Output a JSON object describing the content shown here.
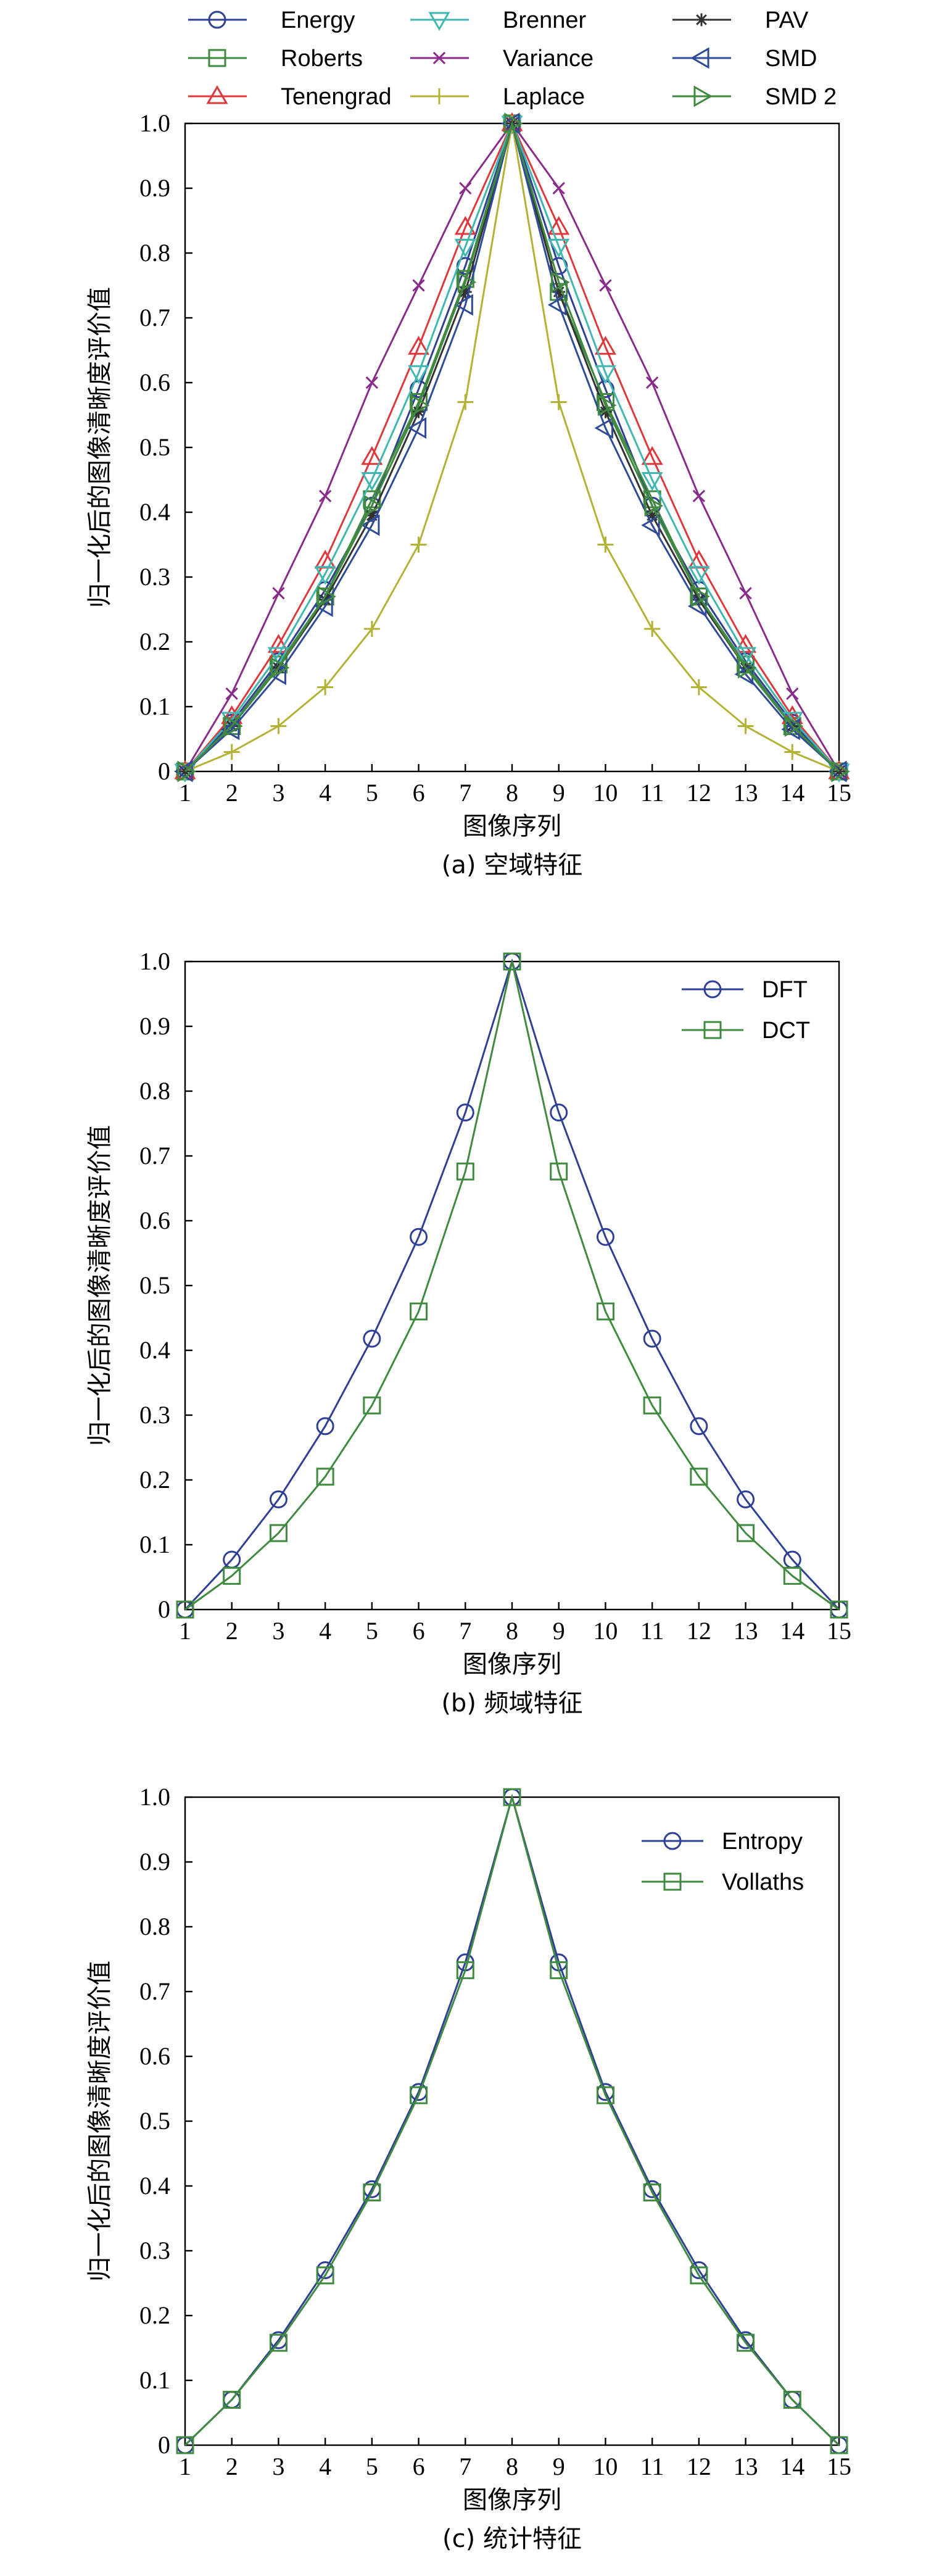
{
  "colors": {
    "Energy": "#2e3f98",
    "Roberts": "#3f8a3f",
    "Tenengrad": "#e0383a",
    "Brenner": "#3fb6b0",
    "Variance": "#8a2a8a",
    "Laplace": "#b4b234",
    "PAV": "#333333",
    "SMD": "#2e4a9a",
    "SMD 2": "#3f8a3f",
    "DFT": "#2e3f98",
    "DCT": "#3f8a3f",
    "Entropy": "#2e3f98",
    "Vollaths": "#3f8a3f"
  },
  "chart_data": [
    {
      "type": "line",
      "caption": "(a) 空域特征",
      "xlabel": "图像序列",
      "ylabel": "归一化后的图像清晰度评价值",
      "x": [
        1,
        2,
        3,
        4,
        5,
        6,
        7,
        8,
        9,
        10,
        11,
        12,
        13,
        14,
        15
      ],
      "ylim": [
        0,
        1.0
      ],
      "yticks": [
        "0",
        "0.1",
        "0.2",
        "0.3",
        "0.4",
        "0.5",
        "0.6",
        "0.7",
        "0.8",
        "0.9",
        "1.0"
      ],
      "legend_position": "top",
      "legend_columns": [
        [
          "Energy",
          "Roberts",
          "Tenengrad"
        ],
        [
          "Brenner",
          "Variance",
          "Laplace"
        ],
        [
          "PAV",
          "SMD",
          "SMD 2"
        ]
      ],
      "series": [
        {
          "name": "Energy",
          "marker": "circle",
          "values": [
            0,
            0.075,
            0.17,
            0.28,
            0.41,
            0.59,
            0.78,
            1.0,
            0.78,
            0.59,
            0.41,
            0.28,
            0.17,
            0.075,
            0
          ]
        },
        {
          "name": "Roberts",
          "marker": "square",
          "values": [
            0,
            0.07,
            0.165,
            0.27,
            0.42,
            0.57,
            0.76,
            1.0,
            0.74,
            0.57,
            0.42,
            0.27,
            0.165,
            0.07,
            0
          ]
        },
        {
          "name": "Tenengrad",
          "marker": "triangle-up",
          "values": [
            0,
            0.085,
            0.195,
            0.325,
            0.485,
            0.655,
            0.84,
            1.0,
            0.84,
            0.655,
            0.485,
            0.325,
            0.195,
            0.085,
            0
          ]
        },
        {
          "name": "Brenner",
          "marker": "triangle-down",
          "values": [
            0,
            0.08,
            0.18,
            0.305,
            0.45,
            0.615,
            0.81,
            1.0,
            0.81,
            0.615,
            0.45,
            0.305,
            0.18,
            0.08,
            0
          ]
        },
        {
          "name": "Variance",
          "marker": "x",
          "values": [
            0,
            0.12,
            0.275,
            0.425,
            0.6,
            0.75,
            0.9,
            1.0,
            0.9,
            0.75,
            0.6,
            0.425,
            0.275,
            0.12,
            0
          ]
        },
        {
          "name": "Laplace",
          "marker": "plus",
          "values": [
            0,
            0.03,
            0.07,
            0.13,
            0.22,
            0.35,
            0.57,
            1.0,
            0.57,
            0.35,
            0.22,
            0.13,
            0.07,
            0.03,
            0
          ]
        },
        {
          "name": "PAV",
          "marker": "star",
          "values": [
            0,
            0.07,
            0.16,
            0.265,
            0.395,
            0.555,
            0.74,
            1.0,
            0.74,
            0.555,
            0.395,
            0.265,
            0.16,
            0.07,
            0
          ]
        },
        {
          "name": "SMD",
          "marker": "triangle-left",
          "values": [
            0,
            0.065,
            0.15,
            0.255,
            0.38,
            0.53,
            0.72,
            1.0,
            0.72,
            0.53,
            0.38,
            0.255,
            0.15,
            0.065,
            0
          ]
        },
        {
          "name": "SMD 2",
          "marker": "triangle-right",
          "values": [
            0,
            0.07,
            0.16,
            0.27,
            0.41,
            0.565,
            0.755,
            1.0,
            0.755,
            0.565,
            0.41,
            0.27,
            0.16,
            0.07,
            0
          ]
        }
      ]
    },
    {
      "type": "line",
      "caption": "(b) 频域特征",
      "xlabel": "图像序列",
      "ylabel": "归一化后的图像清晰度评价值",
      "x": [
        1,
        2,
        3,
        4,
        5,
        6,
        7,
        8,
        9,
        10,
        11,
        12,
        13,
        14,
        15
      ],
      "ylim": [
        0,
        1.0
      ],
      "yticks": [
        "0",
        "0.1",
        "0.2",
        "0.3",
        "0.4",
        "0.5",
        "0.6",
        "0.7",
        "0.8",
        "0.9",
        "1.0"
      ],
      "legend_position": "top-right",
      "legend_columns": [
        [
          "DFT",
          "DCT"
        ]
      ],
      "series": [
        {
          "name": "DFT",
          "marker": "circle",
          "values": [
            0,
            0.077,
            0.17,
            0.283,
            0.418,
            0.575,
            0.767,
            1.0,
            0.767,
            0.575,
            0.418,
            0.283,
            0.17,
            0.077,
            0
          ]
        },
        {
          "name": "DCT",
          "marker": "square",
          "values": [
            0,
            0.052,
            0.118,
            0.205,
            0.315,
            0.46,
            0.676,
            1.0,
            0.676,
            0.46,
            0.315,
            0.205,
            0.118,
            0.052,
            0
          ]
        }
      ]
    },
    {
      "type": "line",
      "caption": "(c) 统计特征",
      "xlabel": "图像序列",
      "ylabel": "归一化后的图像清晰度评价值",
      "x": [
        1,
        2,
        3,
        4,
        5,
        6,
        7,
        8,
        9,
        10,
        11,
        12,
        13,
        14,
        15
      ],
      "ylim": [
        0,
        1.0
      ],
      "yticks": [
        "0",
        "0.1",
        "0.2",
        "0.3",
        "0.4",
        "0.5",
        "0.6",
        "0.7",
        "0.8",
        "0.9",
        "1.0"
      ],
      "legend_position": "top-right",
      "legend_columns": [
        [
          "Entropy",
          "Vollaths"
        ]
      ],
      "series": [
        {
          "name": "Entropy",
          "marker": "circle",
          "values": [
            0,
            0.07,
            0.162,
            0.27,
            0.395,
            0.545,
            0.745,
            1.0,
            0.745,
            0.545,
            0.395,
            0.27,
            0.162,
            0.07,
            0
          ]
        },
        {
          "name": "Vollaths",
          "marker": "square",
          "values": [
            0,
            0.07,
            0.158,
            0.262,
            0.39,
            0.54,
            0.733,
            1.0,
            0.733,
            0.54,
            0.39,
            0.262,
            0.158,
            0.07,
            0
          ]
        }
      ]
    }
  ]
}
